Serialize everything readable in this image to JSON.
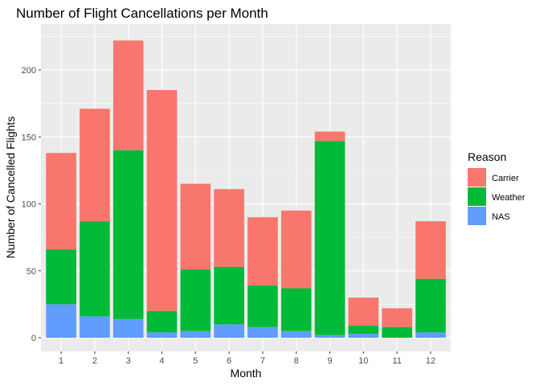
{
  "chart_data": {
    "type": "bar",
    "stacked": true,
    "title": "Number of Flight Cancellations per Month",
    "xlabel": "Month",
    "ylabel": "Number of Cancelled Flights",
    "categories": [
      "1",
      "2",
      "3",
      "4",
      "5",
      "6",
      "7",
      "8",
      "9",
      "10",
      "11",
      "12"
    ],
    "yticks": [
      0,
      50,
      100,
      150,
      200
    ],
    "ylim": [
      0,
      225
    ],
    "grid": true,
    "legend": {
      "title": "Reason",
      "position": "right",
      "entries": [
        "Carrier",
        "Weather",
        "NAS"
      ]
    },
    "series": [
      {
        "name": "NAS",
        "color": "#619CFF",
        "values": [
          25,
          16,
          14,
          4,
          5,
          10,
          8,
          5,
          2,
          3,
          0,
          4
        ]
      },
      {
        "name": "Weather",
        "color": "#00BA38",
        "values": [
          41,
          71,
          126,
          16,
          46,
          43,
          31,
          32,
          145,
          6,
          8,
          40
        ]
      },
      {
        "name": "Carrier",
        "color": "#F8766D",
        "values": [
          72,
          84,
          82,
          165,
          64,
          58,
          51,
          58,
          7,
          21,
          14,
          43
        ]
      }
    ],
    "colors": {
      "panel_bg": "#EBEBEB",
      "grid": "#FFFFFF",
      "Carrier": "#F8766D",
      "Weather": "#00BA38",
      "NAS": "#619CFF"
    }
  }
}
